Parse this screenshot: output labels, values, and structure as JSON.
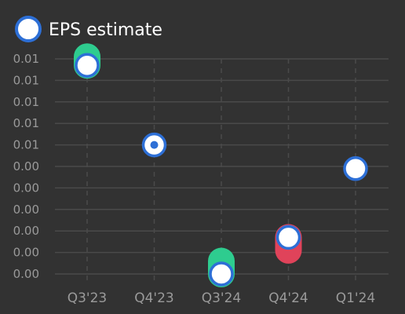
{
  "chart_data": {
    "type": "scatter",
    "legend": {
      "label": "EPS estimate",
      "position": "top-left"
    },
    "categories": [
      "Q3'23",
      "Q4'23",
      "Q3'24",
      "Q4'24",
      "Q1'24"
    ],
    "y_tick_labels": [
      "0.01",
      "0.01",
      "0.01",
      "0.01",
      "0.01",
      "0.00",
      "0.00",
      "0.00",
      "0.00",
      "0.00",
      "0.00"
    ],
    "ylim": [
      0.0,
      0.01
    ],
    "grid": {
      "horizontal": "solid",
      "vertical": "dashed"
    },
    "series": [
      {
        "name": "EPS estimate",
        "values": [
          0.0097,
          0.006,
          0.0,
          0.0017,
          0.0049
        ]
      },
      {
        "role": "actual",
        "values": [
          0.0101,
          0.006,
          0.0006,
          0.0011,
          null
        ]
      }
    ],
    "colors": {
      "background": "#323232",
      "grid": "#4a4a4a",
      "estimate_fill": "#ffffff",
      "estimate_ring": "#2d6fd6",
      "beat": "#2ecc8f",
      "miss": "#e0435a",
      "tick_text": "#9a9a9a",
      "legend_text": "#ffffff"
    }
  }
}
